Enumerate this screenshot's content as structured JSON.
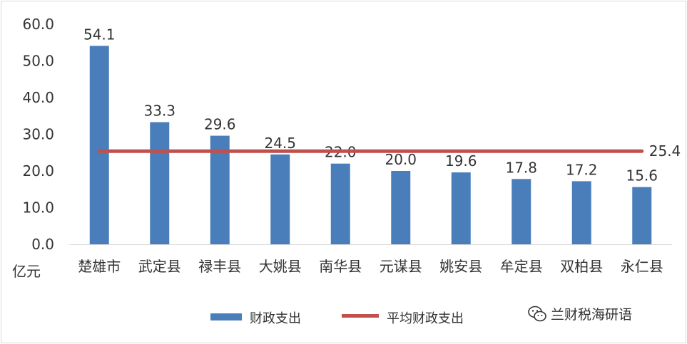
{
  "chart_data": {
    "type": "bar",
    "categories": [
      "楚雄市",
      "武定县",
      "禄丰县",
      "大姚县",
      "南华县",
      "元谋县",
      "姚安县",
      "牟定县",
      "双柏县",
      "永仁县"
    ],
    "series": [
      {
        "name": "财政支出",
        "type": "bar",
        "color": "#4a7ebb",
        "values": [
          54.1,
          33.3,
          29.6,
          24.5,
          22.0,
          20.0,
          19.6,
          17.8,
          17.2,
          15.6
        ]
      },
      {
        "name": "平均财政支出",
        "type": "line",
        "color": "#c0504d",
        "value": 25.4,
        "label": "25.4"
      }
    ],
    "y_ticks": [
      "0.0",
      "10.0",
      "20.0",
      "30.0",
      "40.0",
      "50.0",
      "60.0"
    ],
    "ylim": [
      0,
      60
    ],
    "unit_label": "亿元",
    "legend_position": "bottom",
    "grid": false
  },
  "watermark": {
    "icon": "wechat-icon",
    "text": "兰财税海研语"
  }
}
